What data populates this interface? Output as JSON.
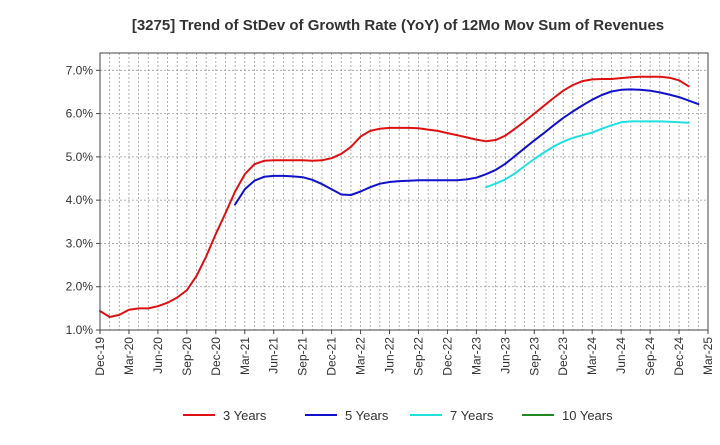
{
  "chart_data": {
    "type": "line",
    "title": "[3275]  Trend of StDev of Growth Rate (YoY) of 12Mo Mov Sum of Revenues",
    "xlabel": "",
    "ylabel": "",
    "ylim": [
      1.0,
      7.4
    ],
    "yticks": [
      1.0,
      2.0,
      3.0,
      4.0,
      5.0,
      6.0,
      7.0
    ],
    "ytick_labels": [
      "1.0%",
      "2.0%",
      "3.0%",
      "4.0%",
      "5.0%",
      "6.0%",
      "7.0%"
    ],
    "xlim": [
      0,
      63
    ],
    "x_tick_labels": [
      "Dec-19",
      "Mar-20",
      "Jun-20",
      "Sep-20",
      "Dec-20",
      "Mar-21",
      "Jun-21",
      "Sep-21",
      "Dec-21",
      "Mar-22",
      "Jun-22",
      "Sep-22",
      "Dec-22",
      "Mar-23",
      "Jun-23",
      "Sep-23",
      "Dec-23",
      "Mar-24",
      "Jun-24",
      "Sep-24",
      "Dec-24",
      "Mar-25"
    ],
    "grid": true,
    "legend_position": "bottom",
    "series": [
      {
        "name": "3 Years",
        "color": "#dd1111",
        "start_index": 0,
        "values": [
          1.44,
          1.3,
          1.35,
          1.47,
          1.5,
          1.5,
          1.55,
          1.63,
          1.75,
          1.92,
          2.25,
          2.7,
          3.22,
          3.7,
          4.2,
          4.6,
          4.83,
          4.91,
          4.92,
          4.92,
          4.92,
          4.92,
          4.91,
          4.92,
          4.97,
          5.07,
          5.23,
          5.47,
          5.6,
          5.65,
          5.67,
          5.67,
          5.67,
          5.66,
          5.63,
          5.6,
          5.55,
          5.5,
          5.45,
          5.4,
          5.36,
          5.39,
          5.49,
          5.65,
          5.82,
          6.0,
          6.18,
          6.36,
          6.53,
          6.66,
          6.75,
          6.79,
          6.8,
          6.8,
          6.82,
          6.84,
          6.85,
          6.85,
          6.85,
          6.83,
          6.77,
          6.63
        ]
      },
      {
        "name": "5 Years",
        "color": "#1111cc",
        "start_index": 14,
        "values": [
          3.9,
          4.25,
          4.45,
          4.54,
          4.56,
          4.56,
          4.55,
          4.53,
          4.47,
          4.37,
          4.25,
          4.13,
          4.12,
          4.2,
          4.3,
          4.38,
          4.42,
          4.44,
          4.45,
          4.46,
          4.46,
          4.46,
          4.46,
          4.46,
          4.48,
          4.52,
          4.6,
          4.7,
          4.84,
          5.02,
          5.2,
          5.38,
          5.55,
          5.73,
          5.9,
          6.05,
          6.19,
          6.32,
          6.43,
          6.51,
          6.55,
          6.56,
          6.55,
          6.53,
          6.49,
          6.44,
          6.38,
          6.3,
          6.22
        ]
      },
      {
        "name": "7 Years",
        "color": "#22e0e0",
        "start_index": 40,
        "values": [
          4.3,
          4.38,
          4.48,
          4.62,
          4.79,
          4.95,
          5.1,
          5.24,
          5.35,
          5.44,
          5.5,
          5.56,
          5.65,
          5.73,
          5.8,
          5.82,
          5.82,
          5.82,
          5.82,
          5.81,
          5.8,
          5.79
        ]
      },
      {
        "name": "10 Years",
        "color": "#228822",
        "start_index": 0,
        "values": []
      }
    ]
  }
}
